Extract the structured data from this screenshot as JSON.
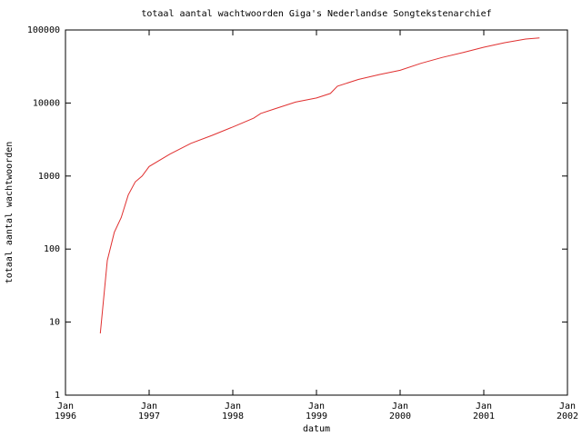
{
  "chart_data": {
    "type": "line",
    "title": "totaal aantal wachtwoorden Giga's Nederlandse Songtekstenarchief",
    "x_label": "datum",
    "y_label": "totaal aantal wachtwoorden",
    "log_y": true,
    "x": [
      "1996-06",
      "1996-07",
      "1996-08",
      "1996-09",
      "1996-10",
      "1996-11",
      "1996-12",
      "1997-01",
      "1997-04",
      "1997-07",
      "1997-10",
      "1998-01",
      "1998-04",
      "1998-05",
      "1998-07",
      "1998-10",
      "1999-01",
      "1999-03",
      "1999-04",
      "1999-07",
      "1999-10",
      "2000-01",
      "2000-04",
      "2000-07",
      "2000-10",
      "2001-01",
      "2001-04",
      "2001-07",
      "2001-09"
    ],
    "series": [
      {
        "name": "wachtwoorden",
        "color": "#e03030",
        "values": [
          7,
          70,
          170,
          270,
          550,
          830,
          1000,
          1350,
          2000,
          2800,
          3600,
          4700,
          6200,
          7200,
          8300,
          10300,
          11700,
          13500,
          17000,
          21000,
          24500,
          28000,
          35000,
          42000,
          49000,
          58000,
          67000,
          75000,
          78000
        ]
      }
    ],
    "xlim": [
      "1996-01",
      "2002-01"
    ],
    "xticks": [
      {
        "value": "1996-01",
        "label": [
          "Jan",
          "1996"
        ]
      },
      {
        "value": "1997-01",
        "label": [
          "Jan",
          "1997"
        ]
      },
      {
        "value": "1998-01",
        "label": [
          "Jan",
          "1998"
        ]
      },
      {
        "value": "1999-01",
        "label": [
          "Jan",
          "1999"
        ]
      },
      {
        "value": "2000-01",
        "label": [
          "Jan",
          "2000"
        ]
      },
      {
        "value": "2001-01",
        "label": [
          "Jan",
          "2001"
        ]
      },
      {
        "value": "2002-01",
        "label": [
          "Jan",
          "2002"
        ]
      }
    ],
    "ylim": [
      1,
      100000
    ],
    "yticks": [
      1,
      10,
      100,
      1000,
      10000,
      100000
    ]
  }
}
